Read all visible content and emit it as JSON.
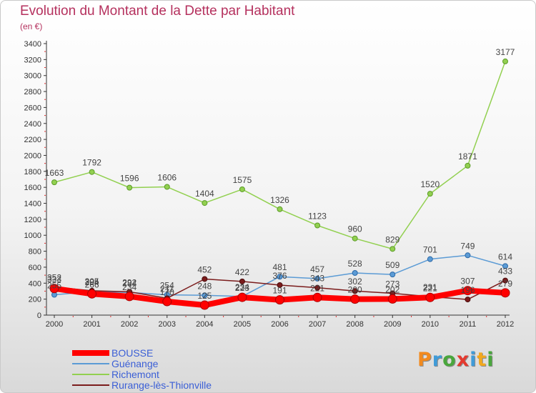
{
  "title": "Evolution du Montant de la Dette par Habitant",
  "unit": "(en €)",
  "logo": {
    "text": "Proxiti",
    "letters": [
      {
        "ch": "P",
        "color": "#f28a1e"
      },
      {
        "ch": "r",
        "color": "#3f9bd8"
      },
      {
        "ch": "o",
        "color": "#49a63c"
      },
      {
        "ch": "x",
        "color": "#e43a2f"
      },
      {
        "ch": "i",
        "color": "#3f9bd8"
      },
      {
        "ch": "t",
        "color": "#f2a81e"
      },
      {
        "ch": "i",
        "color": "#49a63c"
      }
    ]
  },
  "chart_data": {
    "type": "line",
    "title": "Evolution du Montant de la Dette par Habitant",
    "subtitle": "(en €)",
    "x": [
      "2000",
      "2001",
      "2002",
      "2003",
      "2004",
      "2005",
      "2006",
      "2007",
      "2008",
      "2009",
      "2010",
      "2011",
      "2012"
    ],
    "ylim": [
      0,
      3400
    ],
    "yticks": [
      0,
      200,
      400,
      600,
      800,
      1000,
      1200,
      1400,
      1600,
      1800,
      2000,
      2200,
      2400,
      2600,
      2800,
      3000,
      3200,
      3400
    ],
    "grid": false,
    "legend": "bottom-left",
    "series": [
      {
        "name": "BOUSSE",
        "color": "#ff0000",
        "values": [
          333,
          266,
          234,
          170,
          125,
          223,
          191,
          221,
          200,
          202,
          221,
          307,
          279
        ]
      },
      {
        "name": "Guénange",
        "color": "#5b9bd5",
        "values": [
          255,
          294,
          284,
          254,
          248,
          234,
          481,
          457,
          528,
          509,
          701,
          749,
          614
        ]
      },
      {
        "name": "Richemont",
        "color": "#92d050",
        "values": [
          1663,
          1792,
          1596,
          1606,
          1404,
          1575,
          1326,
          1123,
          960,
          829,
          1520,
          1871,
          3177
        ]
      },
      {
        "name": "Rurange-lès-Thionville",
        "color": "#7b1c1c",
        "values": [
          352,
          305,
          292,
          211,
          452,
          422,
          376,
          343,
          302,
          273,
          231,
          196,
          433
        ]
      }
    ]
  }
}
